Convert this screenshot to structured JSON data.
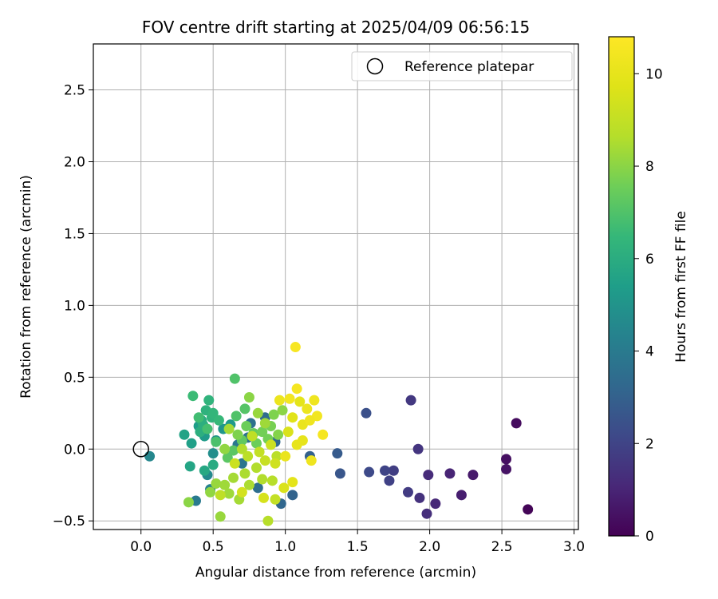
{
  "chart_data": {
    "type": "scatter",
    "title": "FOV centre drift starting at 2025/04/09 06:56:15",
    "xlabel": "Angular distance from reference (arcmin)",
    "ylabel": "Rotation from reference (arcmin)",
    "xlim": [
      -0.33,
      3.03
    ],
    "ylim": [
      -0.56,
      2.82
    ],
    "x_ticks": [
      0.0,
      0.5,
      1.0,
      1.5,
      2.0,
      2.5,
      3.0
    ],
    "x_tick_labels": [
      "0.0",
      "0.5",
      "1.0",
      "1.5",
      "2.0",
      "2.5",
      "3.0"
    ],
    "y_ticks": [
      -0.5,
      0.0,
      0.5,
      1.0,
      1.5,
      2.0,
      2.5
    ],
    "y_tick_labels": [
      "−0.5",
      "0.0",
      "0.5",
      "1.0",
      "1.5",
      "2.0",
      "2.5"
    ],
    "grid": true,
    "legend": {
      "placement": "upper right",
      "entries": [
        {
          "label": "Reference platepar",
          "marker": "open-circle"
        }
      ]
    },
    "reference_point": {
      "x": 0.0,
      "y": 0.0
    },
    "colorbar": {
      "label": "Hours from first FF file",
      "colormap": "viridis",
      "range": [
        0,
        10.8
      ],
      "ticks": [
        0,
        2,
        4,
        6,
        8,
        10
      ],
      "tick_labels": [
        "0",
        "2",
        "4",
        "6",
        "8",
        "10"
      ]
    },
    "points": [
      {
        "x": 2.68,
        "y": -0.42,
        "c": 0.1
      },
      {
        "x": 2.6,
        "y": 0.18,
        "c": 0.3
      },
      {
        "x": 2.53,
        "y": -0.07,
        "c": 0.4
      },
      {
        "x": 2.53,
        "y": -0.14,
        "c": 0.5
      },
      {
        "x": 2.3,
        "y": -0.18,
        "c": 0.7
      },
      {
        "x": 2.22,
        "y": -0.32,
        "c": 0.8
      },
      {
        "x": 2.14,
        "y": -0.17,
        "c": 1.0
      },
      {
        "x": 2.04,
        "y": -0.38,
        "c": 1.1
      },
      {
        "x": 1.99,
        "y": -0.18,
        "c": 1.2
      },
      {
        "x": 1.98,
        "y": -0.45,
        "c": 1.3
      },
      {
        "x": 1.93,
        "y": -0.34,
        "c": 1.4
      },
      {
        "x": 1.92,
        "y": 0.0,
        "c": 1.5
      },
      {
        "x": 1.87,
        "y": 0.34,
        "c": 1.6
      },
      {
        "x": 1.85,
        "y": -0.3,
        "c": 1.7
      },
      {
        "x": 1.75,
        "y": -0.15,
        "c": 1.8
      },
      {
        "x": 1.72,
        "y": -0.22,
        "c": 1.9
      },
      {
        "x": 1.69,
        "y": -0.15,
        "c": 2.0
      },
      {
        "x": 1.58,
        "y": -0.16,
        "c": 2.2
      },
      {
        "x": 1.56,
        "y": 0.25,
        "c": 2.4
      },
      {
        "x": 1.38,
        "y": -0.17,
        "c": 2.6
      },
      {
        "x": 1.36,
        "y": -0.03,
        "c": 2.8
      },
      {
        "x": 1.17,
        "y": -0.05,
        "c": 3.0
      },
      {
        "x": 1.05,
        "y": -0.32,
        "c": 3.1
      },
      {
        "x": 0.97,
        "y": -0.38,
        "c": 3.2
      },
      {
        "x": 0.93,
        "y": 0.05,
        "c": 3.3
      },
      {
        "x": 0.86,
        "y": 0.22,
        "c": 3.4
      },
      {
        "x": 0.81,
        "y": -0.27,
        "c": 3.5
      },
      {
        "x": 0.76,
        "y": 0.18,
        "c": 3.6
      },
      {
        "x": 0.74,
        "y": 0.08,
        "c": 3.7
      },
      {
        "x": 0.7,
        "y": -0.1,
        "c": 3.8
      },
      {
        "x": 0.67,
        "y": 0.03,
        "c": 3.9
      },
      {
        "x": 0.38,
        "y": -0.36,
        "c": 4.0
      },
      {
        "x": 0.06,
        "y": -0.05,
        "c": 4.5
      },
      {
        "x": 0.48,
        "y": -0.28,
        "c": 4.3
      },
      {
        "x": 0.46,
        "y": -0.18,
        "c": 4.6
      },
      {
        "x": 0.5,
        "y": -0.03,
        "c": 4.8
      },
      {
        "x": 0.52,
        "y": 0.06,
        "c": 5.0
      },
      {
        "x": 0.57,
        "y": 0.14,
        "c": 5.1
      },
      {
        "x": 0.62,
        "y": 0.17,
        "c": 5.2
      },
      {
        "x": 0.44,
        "y": 0.09,
        "c": 5.3
      },
      {
        "x": 0.4,
        "y": 0.16,
        "c": 5.4
      },
      {
        "x": 0.35,
        "y": 0.04,
        "c": 5.5
      },
      {
        "x": 0.3,
        "y": 0.1,
        "c": 5.6
      },
      {
        "x": 0.34,
        "y": -0.12,
        "c": 5.7
      },
      {
        "x": 0.44,
        "y": -0.15,
        "c": 5.8
      },
      {
        "x": 0.5,
        "y": -0.11,
        "c": 5.9
      },
      {
        "x": 0.42,
        "y": 0.2,
        "c": 6.0
      },
      {
        "x": 0.41,
        "y": 0.12,
        "c": 6.1
      },
      {
        "x": 0.43,
        "y": 0.17,
        "c": 6.1
      },
      {
        "x": 0.45,
        "y": 0.27,
        "c": 6.2
      },
      {
        "x": 0.47,
        "y": 0.34,
        "c": 6.3
      },
      {
        "x": 0.49,
        "y": 0.22,
        "c": 6.3
      },
      {
        "x": 0.5,
        "y": 0.25,
        "c": 6.4
      },
      {
        "x": 0.54,
        "y": 0.2,
        "c": 6.5
      },
      {
        "x": 0.36,
        "y": 0.37,
        "c": 6.6
      },
      {
        "x": 0.4,
        "y": 0.22,
        "c": 6.7
      },
      {
        "x": 0.46,
        "y": 0.14,
        "c": 6.8
      },
      {
        "x": 0.52,
        "y": 0.05,
        "c": 6.9
      },
      {
        "x": 0.65,
        "y": 0.49,
        "c": 7.0
      },
      {
        "x": 0.66,
        "y": 0.23,
        "c": 7.0
      },
      {
        "x": 0.72,
        "y": 0.28,
        "c": 7.1
      },
      {
        "x": 0.6,
        "y": -0.06,
        "c": 7.2
      },
      {
        "x": 0.64,
        "y": -0.01,
        "c": 7.2
      },
      {
        "x": 0.7,
        "y": 0.06,
        "c": 7.3
      },
      {
        "x": 0.78,
        "y": 0.11,
        "c": 7.4
      },
      {
        "x": 0.8,
        "y": 0.04,
        "c": 7.5
      },
      {
        "x": 0.84,
        "y": 0.12,
        "c": 7.6
      },
      {
        "x": 0.88,
        "y": 0.07,
        "c": 7.6
      },
      {
        "x": 0.9,
        "y": 0.16,
        "c": 7.7
      },
      {
        "x": 0.92,
        "y": 0.24,
        "c": 7.8
      },
      {
        "x": 0.95,
        "y": 0.1,
        "c": 7.9
      },
      {
        "x": 0.98,
        "y": 0.27,
        "c": 8.0
      },
      {
        "x": 0.33,
        "y": -0.37,
        "c": 8.0
      },
      {
        "x": 0.48,
        "y": -0.3,
        "c": 8.1
      },
      {
        "x": 0.52,
        "y": -0.24,
        "c": 8.2
      },
      {
        "x": 0.55,
        "y": -0.47,
        "c": 8.2
      },
      {
        "x": 0.58,
        "y": -0.25,
        "c": 8.3
      },
      {
        "x": 0.61,
        "y": -0.31,
        "c": 8.3
      },
      {
        "x": 0.64,
        "y": -0.2,
        "c": 8.4
      },
      {
        "x": 0.68,
        "y": -0.35,
        "c": 8.4
      },
      {
        "x": 0.72,
        "y": -0.17,
        "c": 8.5
      },
      {
        "x": 0.75,
        "y": -0.25,
        "c": 8.5
      },
      {
        "x": 0.8,
        "y": -0.13,
        "c": 8.6
      },
      {
        "x": 0.84,
        "y": -0.21,
        "c": 8.6
      },
      {
        "x": 0.88,
        "y": -0.5,
        "c": 8.7
      },
      {
        "x": 0.91,
        "y": -0.22,
        "c": 8.7
      },
      {
        "x": 0.94,
        "y": -0.05,
        "c": 8.8
      },
      {
        "x": 0.75,
        "y": 0.36,
        "c": 8.0
      },
      {
        "x": 0.81,
        "y": 0.25,
        "c": 8.2
      },
      {
        "x": 0.86,
        "y": 0.18,
        "c": 8.3
      },
      {
        "x": 0.61,
        "y": 0.14,
        "c": 8.4
      },
      {
        "x": 0.7,
        "y": 0.0,
        "c": 8.6
      },
      {
        "x": 0.74,
        "y": -0.05,
        "c": 8.8
      },
      {
        "x": 0.77,
        "y": 0.09,
        "c": 8.9
      },
      {
        "x": 0.82,
        "y": -0.02,
        "c": 9.0
      },
      {
        "x": 0.86,
        "y": -0.08,
        "c": 9.1
      },
      {
        "x": 0.9,
        "y": 0.03,
        "c": 9.2
      },
      {
        "x": 0.93,
        "y": -0.1,
        "c": 9.3
      },
      {
        "x": 0.65,
        "y": -0.1,
        "c": 9.2
      },
      {
        "x": 0.7,
        "y": -0.3,
        "c": 9.4
      },
      {
        "x": 0.85,
        "y": -0.34,
        "c": 9.5
      },
      {
        "x": 0.99,
        "y": -0.27,
        "c": 9.6
      },
      {
        "x": 1.02,
        "y": 0.12,
        "c": 9.6
      },
      {
        "x": 1.05,
        "y": 0.22,
        "c": 9.8
      },
      {
        "x": 1.1,
        "y": 0.33,
        "c": 9.9
      },
      {
        "x": 1.08,
        "y": 0.03,
        "c": 10.0
      },
      {
        "x": 1.12,
        "y": 0.17,
        "c": 10.1
      },
      {
        "x": 1.15,
        "y": 0.28,
        "c": 10.2
      },
      {
        "x": 1.18,
        "y": -0.08,
        "c": 10.3
      },
      {
        "x": 1.2,
        "y": 0.34,
        "c": 10.3
      },
      {
        "x": 1.22,
        "y": 0.23,
        "c": 10.4
      },
      {
        "x": 1.26,
        "y": 0.1,
        "c": 10.5
      },
      {
        "x": 1.07,
        "y": 0.71,
        "c": 10.6
      },
      {
        "x": 1.08,
        "y": 0.42,
        "c": 10.5
      },
      {
        "x": 1.03,
        "y": 0.35,
        "c": 10.4
      },
      {
        "x": 0.96,
        "y": 0.34,
        "c": 10.2
      },
      {
        "x": 1.05,
        "y": -0.23,
        "c": 9.9
      },
      {
        "x": 1.0,
        "y": -0.05,
        "c": 10.1
      },
      {
        "x": 0.93,
        "y": -0.35,
        "c": 9.0
      },
      {
        "x": 0.55,
        "y": -0.32,
        "c": 8.9
      },
      {
        "x": 0.58,
        "y": 0.0,
        "c": 8.1
      },
      {
        "x": 0.67,
        "y": 0.1,
        "c": 7.8
      },
      {
        "x": 0.73,
        "y": 0.16,
        "c": 7.5
      },
      {
        "x": 1.12,
        "y": 0.06,
        "c": 10.0
      },
      {
        "x": 1.17,
        "y": 0.2,
        "c": 10.3
      }
    ]
  }
}
